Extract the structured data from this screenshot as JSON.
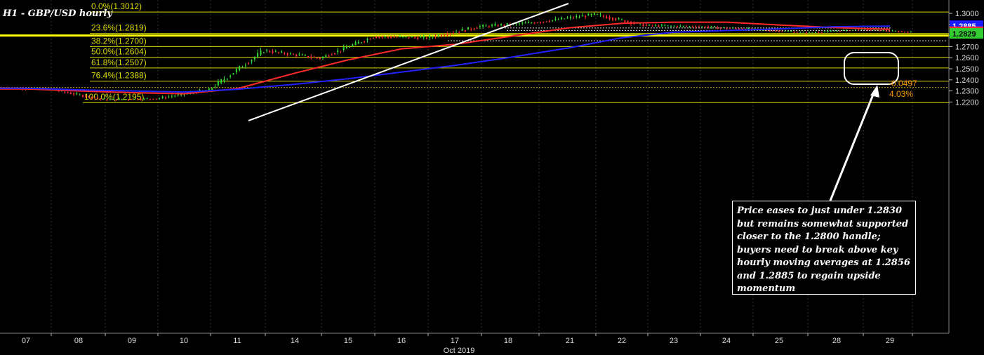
{
  "chart_data": {
    "type": "candlestick",
    "title": "H1 - GBP/USD hourly",
    "ylim": [
      1.2145,
      1.3045
    ],
    "y_ticks": [
      "1.3000",
      "1.2900",
      "1.2800",
      "1.2700",
      "1.2600",
      "1.2500",
      "1.2400",
      "1.2300",
      "1.2200"
    ],
    "x_ticks": [
      "07",
      "08",
      "09",
      "10",
      "11",
      "14",
      "15",
      "16",
      "17",
      "18",
      "21",
      "22",
      "23",
      "24",
      "25",
      "28",
      "29"
    ],
    "x_period_label": "Oct 2019",
    "fib_levels": [
      {
        "label": "0.0%(1.3012)",
        "value": 1.3012
      },
      {
        "label": "23.6%(1.2819)",
        "value": 1.2819
      },
      {
        "label": "38.2%(1.2700)",
        "value": 1.27
      },
      {
        "label": "50.0%(1.2604)",
        "value": 1.2604
      },
      {
        "label": "61.8%(1.2507)",
        "value": 1.2507
      },
      {
        "label": "76.4%(1.2388)",
        "value": 1.2388
      },
      {
        "label": "100.0%(1.2195)",
        "value": 1.2195
      }
    ],
    "key_level": 1.28,
    "dotted_levels": [
      1.2868,
      1.2846,
      1.2752,
      1.2331
    ],
    "price_series": [
      {
        "day": "07",
        "close": 1.2315
      },
      {
        "day": "08",
        "close": 1.222
      },
      {
        "day": "09",
        "close": 1.223
      },
      {
        "day": "10",
        "close": 1.231
      },
      {
        "day": "11",
        "close": 1.2665
      },
      {
        "day": "14",
        "close": 1.2595
      },
      {
        "day": "15",
        "close": 1.279
      },
      {
        "day": "16",
        "close": 1.278
      },
      {
        "day": "17",
        "close": 1.288
      },
      {
        "day": "18",
        "close": 1.292
      },
      {
        "day": "21",
        "close": 1.299
      },
      {
        "day": "22",
        "close": 1.289
      },
      {
        "day": "23",
        "close": 1.288
      },
      {
        "day": "24",
        "close": 1.2855
      },
      {
        "day": "25",
        "close": 1.2825
      },
      {
        "day": "28",
        "close": 1.2855
      },
      {
        "day": "29",
        "close": 1.2829
      }
    ],
    "series": [
      {
        "name": "1.2856",
        "color": "#ff2a2a",
        "values": [
          1.2318,
          1.23,
          1.2285,
          1.2275,
          1.232,
          1.246,
          1.258,
          1.268,
          1.272,
          1.279,
          1.287,
          1.291,
          1.292,
          1.292,
          1.2895,
          1.287,
          1.2856
        ]
      },
      {
        "name": "1.2885",
        "color": "#2222ff",
        "values": [
          1.2325,
          1.231,
          1.23,
          1.229,
          1.2315,
          1.236,
          1.241,
          1.247,
          1.253,
          1.26,
          1.269,
          1.278,
          1.283,
          1.2845,
          1.286,
          1.288,
          1.2885
        ]
      }
    ],
    "price_badges": [
      {
        "label": "1.2885",
        "value": 1.2885,
        "color": "#1a1aff"
      },
      {
        "label": "1.2856",
        "value": 1.2856,
        "color": "#ff3030"
      },
      {
        "label": "1.2829",
        "value": 1.2829,
        "color": "#33cc33"
      }
    ],
    "annotations": [
      {
        "text": "-0.0497",
        "color": "#ff9900"
      },
      {
        "text": "4.03%",
        "color": "#ff9900"
      },
      {
        "text": "Price eases to just under 1.2830 but remains somewhat supported closer to the 1.2800 handle; buyers need to break above key hourly moving averages at 1.2856 and 1.2885 to regain upside momentum"
      }
    ],
    "colors": {
      "background": "#000000",
      "fib": "#d9d900",
      "key_level": "#ffff00",
      "up_candle": "#33dd33",
      "down_candle": "#ff3030"
    }
  }
}
